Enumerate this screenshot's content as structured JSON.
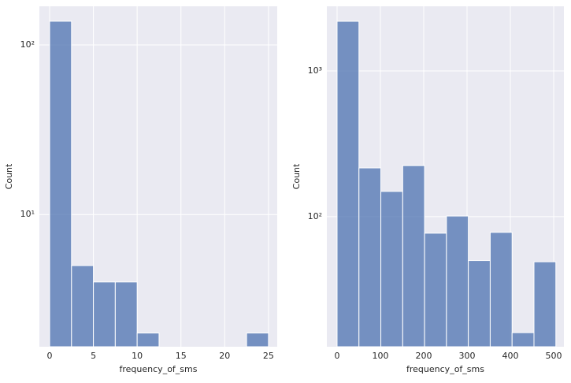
{
  "chart_data": [
    {
      "type": "histogram",
      "xlabel": "frequency_of_sms",
      "ylabel": "Count",
      "log_y": true,
      "grid": true,
      "color": "#4c72b0",
      "bins": [
        0,
        2.5,
        5,
        7.5,
        10,
        12.5,
        15,
        17.5,
        20,
        22.5,
        25
      ],
      "values": [
        138,
        5,
        4,
        4,
        2,
        0,
        0,
        0,
        0,
        2
      ],
      "xlim": [
        -1.17,
        26.0
      ],
      "xticks": [
        0,
        5,
        10,
        15,
        20,
        25
      ],
      "ylim": [
        1.66,
        169
      ],
      "yticks": [
        {
          "value": 10,
          "label": "10¹"
        },
        {
          "value": 100,
          "label": "10²"
        }
      ]
    },
    {
      "type": "histogram",
      "xlabel": "frequency_of_sms",
      "ylabel": "Count",
      "log_y": true,
      "grid": true,
      "color": "#4c72b0",
      "bins": [
        0,
        50.5,
        101,
        151.5,
        202,
        252.5,
        303,
        353.5,
        404,
        454.5,
        505
      ],
      "values": [
        2190,
        216,
        149,
        224,
        77,
        101,
        50,
        78,
        16,
        49
      ],
      "xlim": [
        -23.6,
        523.6
      ],
      "xticks": [
        0,
        100,
        200,
        300,
        400,
        500
      ],
      "ylim": [
        12.8,
        2775
      ],
      "yticks": [
        {
          "value": 100,
          "label": "10²"
        },
        {
          "value": 1000,
          "label": "10³"
        }
      ]
    }
  ]
}
